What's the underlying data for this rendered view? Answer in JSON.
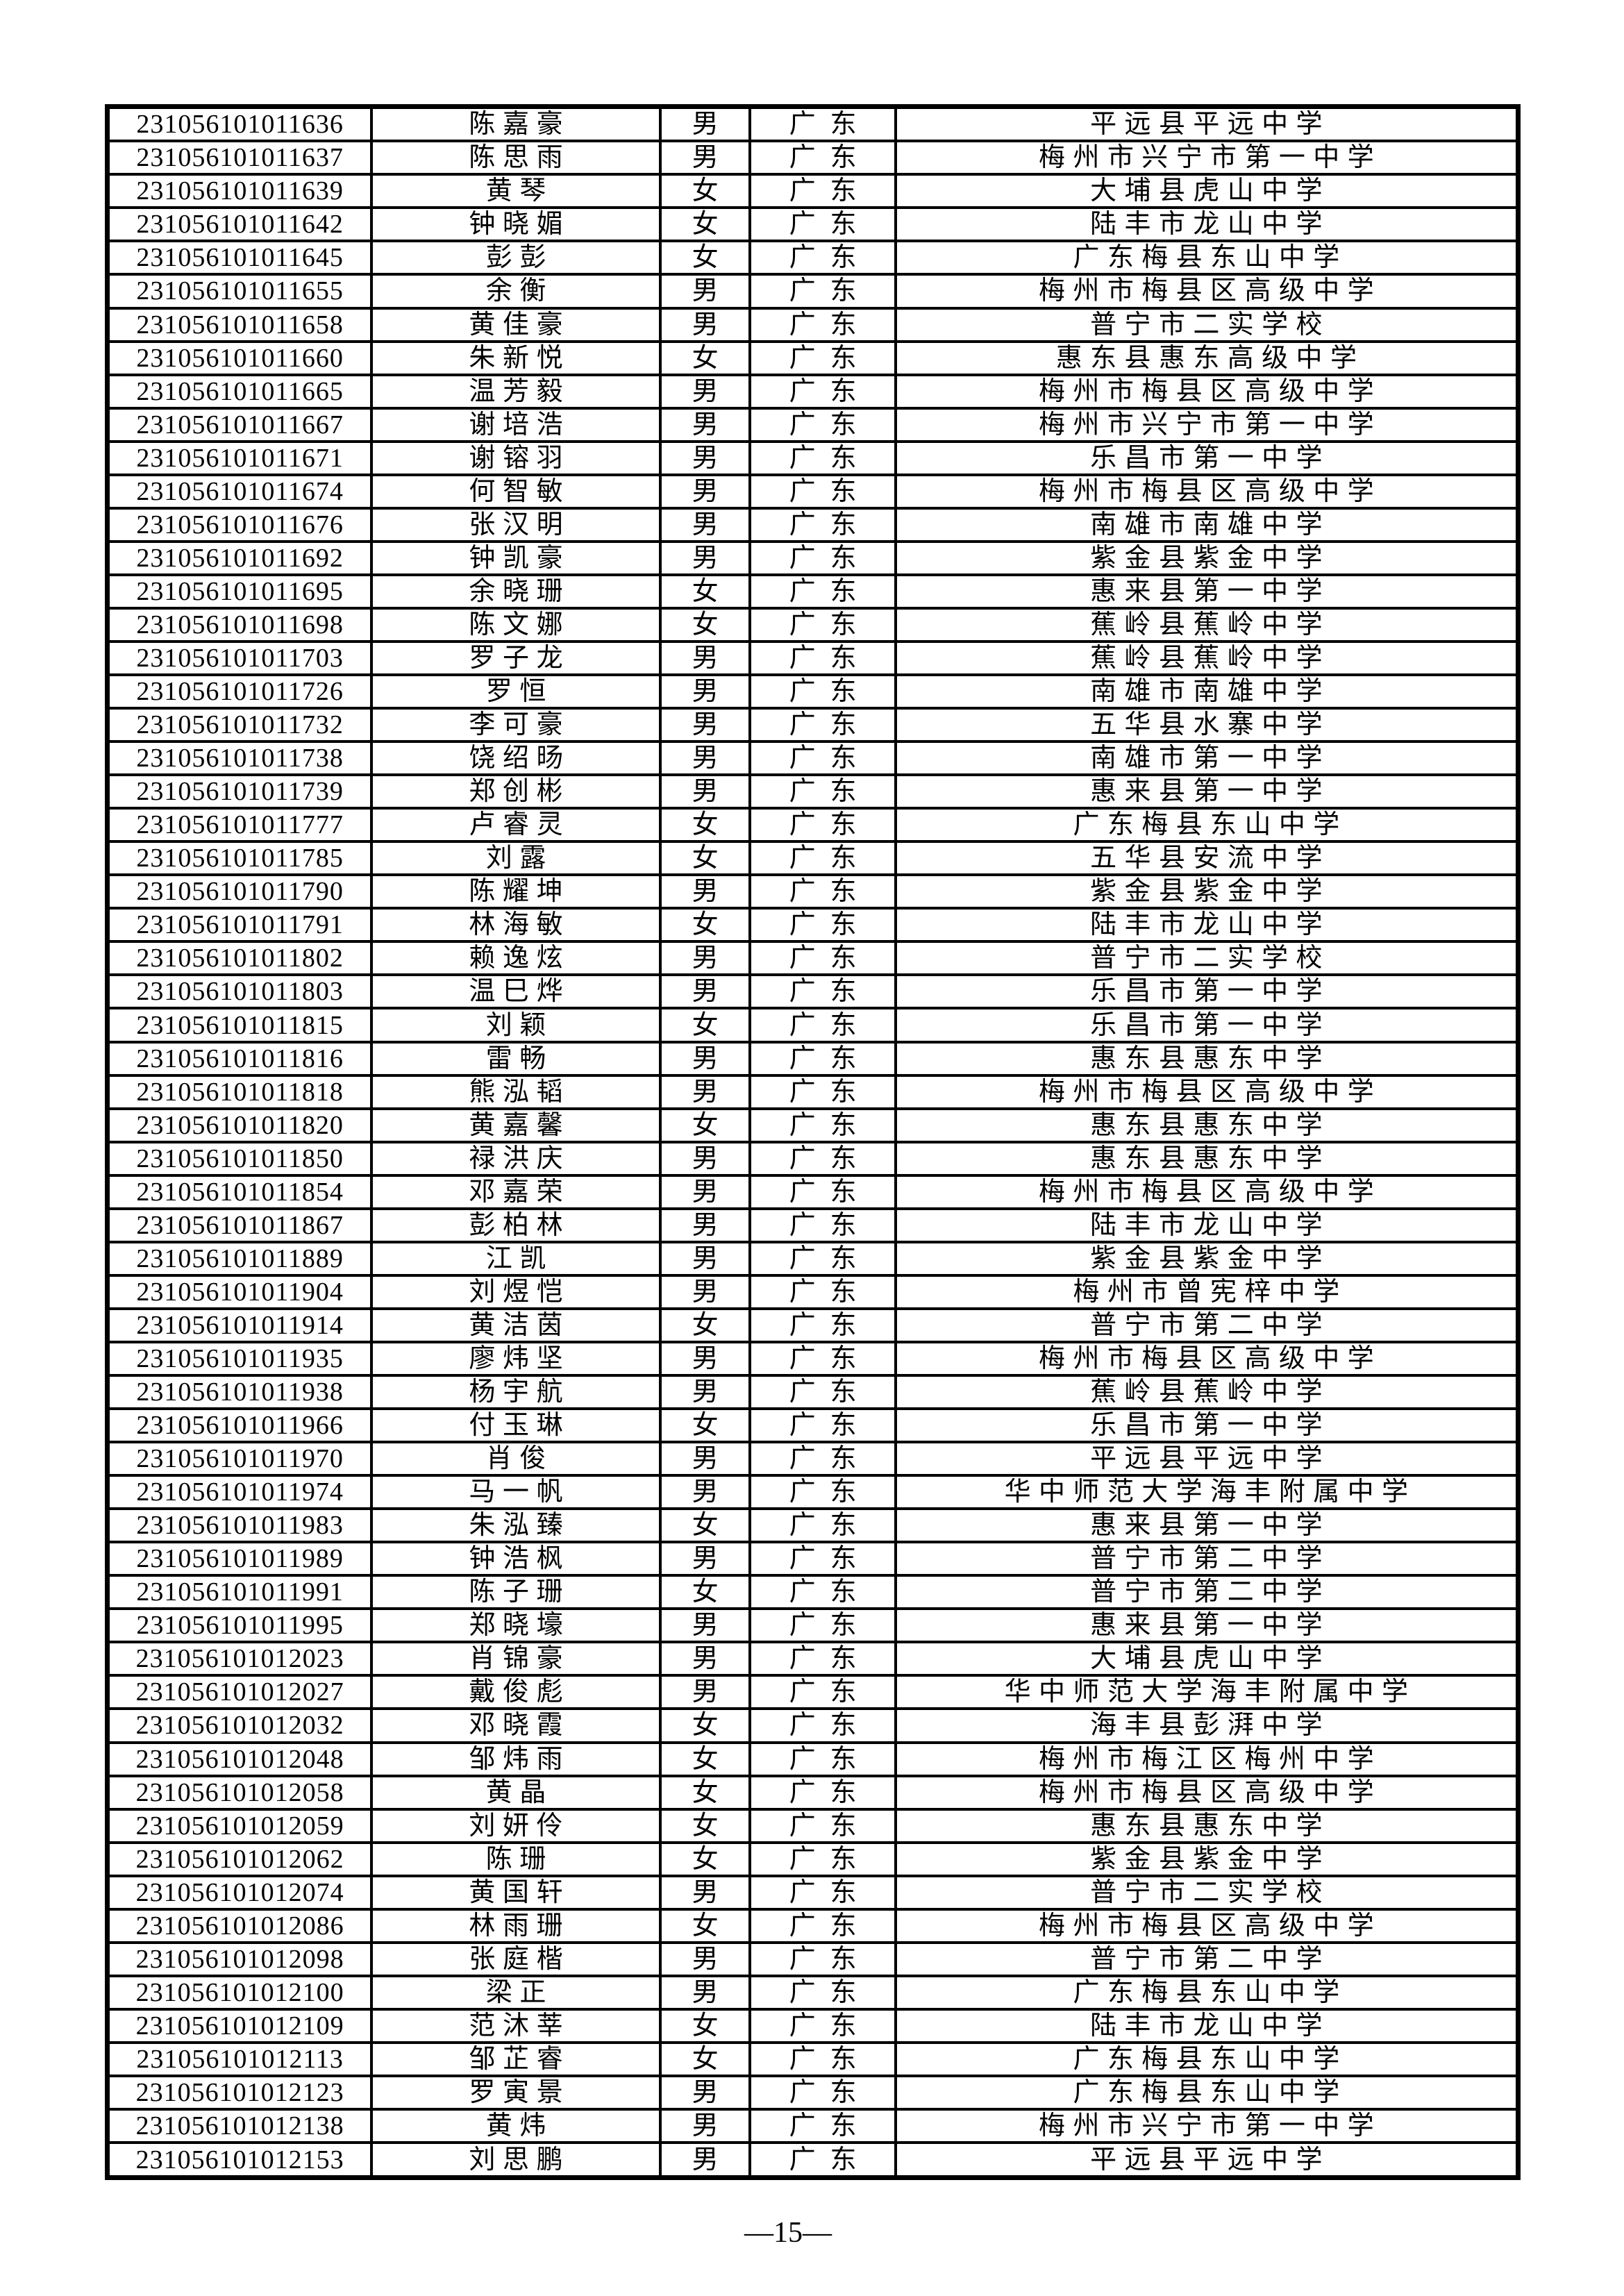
{
  "page": {
    "number_label": "—15—"
  },
  "table": {
    "column_keys": [
      "id",
      "name",
      "gender",
      "province",
      "school"
    ],
    "rows": [
      {
        "id": "231056101011636",
        "name": "陈嘉豪",
        "gender": "男",
        "province": "广东",
        "school": "平远县平远中学"
      },
      {
        "id": "231056101011637",
        "name": "陈思雨",
        "gender": "男",
        "province": "广东",
        "school": "梅州市兴宁市第一中学"
      },
      {
        "id": "231056101011639",
        "name": "黄琴",
        "gender": "女",
        "province": "广东",
        "school": "大埔县虎山中学"
      },
      {
        "id": "231056101011642",
        "name": "钟晓媚",
        "gender": "女",
        "province": "广东",
        "school": "陆丰市龙山中学"
      },
      {
        "id": "231056101011645",
        "name": "彭彭",
        "gender": "女",
        "province": "广东",
        "school": "广东梅县东山中学"
      },
      {
        "id": "231056101011655",
        "name": "余衡",
        "gender": "男",
        "province": "广东",
        "school": "梅州市梅县区高级中学"
      },
      {
        "id": "231056101011658",
        "name": "黄佳豪",
        "gender": "男",
        "province": "广东",
        "school": "普宁市二实学校"
      },
      {
        "id": "231056101011660",
        "name": "朱新悦",
        "gender": "女",
        "province": "广东",
        "school": "惠东县惠东高级中学"
      },
      {
        "id": "231056101011665",
        "name": "温芳毅",
        "gender": "男",
        "province": "广东",
        "school": "梅州市梅县区高级中学"
      },
      {
        "id": "231056101011667",
        "name": "谢培浩",
        "gender": "男",
        "province": "广东",
        "school": "梅州市兴宁市第一中学"
      },
      {
        "id": "231056101011671",
        "name": "谢镕羽",
        "gender": "男",
        "province": "广东",
        "school": "乐昌市第一中学"
      },
      {
        "id": "231056101011674",
        "name": "何智敏",
        "gender": "男",
        "province": "广东",
        "school": "梅州市梅县区高级中学"
      },
      {
        "id": "231056101011676",
        "name": "张汉明",
        "gender": "男",
        "province": "广东",
        "school": "南雄市南雄中学"
      },
      {
        "id": "231056101011692",
        "name": "钟凯豪",
        "gender": "男",
        "province": "广东",
        "school": "紫金县紫金中学"
      },
      {
        "id": "231056101011695",
        "name": "余晓珊",
        "gender": "女",
        "province": "广东",
        "school": "惠来县第一中学"
      },
      {
        "id": "231056101011698",
        "name": "陈文娜",
        "gender": "女",
        "province": "广东",
        "school": "蕉岭县蕉岭中学"
      },
      {
        "id": "231056101011703",
        "name": "罗子龙",
        "gender": "男",
        "province": "广东",
        "school": "蕉岭县蕉岭中学"
      },
      {
        "id": "231056101011726",
        "name": "罗恒",
        "gender": "男",
        "province": "广东",
        "school": "南雄市南雄中学"
      },
      {
        "id": "231056101011732",
        "name": "李可豪",
        "gender": "男",
        "province": "广东",
        "school": "五华县水寨中学"
      },
      {
        "id": "231056101011738",
        "name": "饶绍旸",
        "gender": "男",
        "province": "广东",
        "school": "南雄市第一中学"
      },
      {
        "id": "231056101011739",
        "name": "郑创彬",
        "gender": "男",
        "province": "广东",
        "school": "惠来县第一中学"
      },
      {
        "id": "231056101011777",
        "name": "卢睿灵",
        "gender": "女",
        "province": "广东",
        "school": "广东梅县东山中学"
      },
      {
        "id": "231056101011785",
        "name": "刘露",
        "gender": "女",
        "province": "广东",
        "school": "五华县安流中学"
      },
      {
        "id": "231056101011790",
        "name": "陈耀坤",
        "gender": "男",
        "province": "广东",
        "school": "紫金县紫金中学"
      },
      {
        "id": "231056101011791",
        "name": "林海敏",
        "gender": "女",
        "province": "广东",
        "school": "陆丰市龙山中学"
      },
      {
        "id": "231056101011802",
        "name": "赖逸炫",
        "gender": "男",
        "province": "广东",
        "school": "普宁市二实学校"
      },
      {
        "id": "231056101011803",
        "name": "温巳烨",
        "gender": "男",
        "province": "广东",
        "school": "乐昌市第一中学"
      },
      {
        "id": "231056101011815",
        "name": "刘颖",
        "gender": "女",
        "province": "广东",
        "school": "乐昌市第一中学"
      },
      {
        "id": "231056101011816",
        "name": "雷畅",
        "gender": "男",
        "province": "广东",
        "school": "惠东县惠东中学"
      },
      {
        "id": "231056101011818",
        "name": "熊泓韬",
        "gender": "男",
        "province": "广东",
        "school": "梅州市梅县区高级中学"
      },
      {
        "id": "231056101011820",
        "name": "黄嘉馨",
        "gender": "女",
        "province": "广东",
        "school": "惠东县惠东中学"
      },
      {
        "id": "231056101011850",
        "name": "禄洪庆",
        "gender": "男",
        "province": "广东",
        "school": "惠东县惠东中学"
      },
      {
        "id": "231056101011854",
        "name": "邓嘉荣",
        "gender": "男",
        "province": "广东",
        "school": "梅州市梅县区高级中学"
      },
      {
        "id": "231056101011867",
        "name": "彭柏林",
        "gender": "男",
        "province": "广东",
        "school": "陆丰市龙山中学"
      },
      {
        "id": "231056101011889",
        "name": "江凯",
        "gender": "男",
        "province": "广东",
        "school": "紫金县紫金中学"
      },
      {
        "id": "231056101011904",
        "name": "刘煜恺",
        "gender": "男",
        "province": "广东",
        "school": "梅州市曾宪梓中学"
      },
      {
        "id": "231056101011914",
        "name": "黄洁茵",
        "gender": "女",
        "province": "广东",
        "school": "普宁市第二中学"
      },
      {
        "id": "231056101011935",
        "name": "廖炜坚",
        "gender": "男",
        "province": "广东",
        "school": "梅州市梅县区高级中学"
      },
      {
        "id": "231056101011938",
        "name": "杨宇航",
        "gender": "男",
        "province": "广东",
        "school": "蕉岭县蕉岭中学"
      },
      {
        "id": "231056101011966",
        "name": "付玉琳",
        "gender": "女",
        "province": "广东",
        "school": "乐昌市第一中学"
      },
      {
        "id": "231056101011970",
        "name": "肖俊",
        "gender": "男",
        "province": "广东",
        "school": "平远县平远中学"
      },
      {
        "id": "231056101011974",
        "name": "马一帆",
        "gender": "男",
        "province": "广东",
        "school": "华中师范大学海丰附属中学"
      },
      {
        "id": "231056101011983",
        "name": "朱泓臻",
        "gender": "女",
        "province": "广东",
        "school": "惠来县第一中学"
      },
      {
        "id": "231056101011989",
        "name": "钟浩枫",
        "gender": "男",
        "province": "广东",
        "school": "普宁市第二中学"
      },
      {
        "id": "231056101011991",
        "name": "陈子珊",
        "gender": "女",
        "province": "广东",
        "school": "普宁市第二中学"
      },
      {
        "id": "231056101011995",
        "name": "郑晓壕",
        "gender": "男",
        "province": "广东",
        "school": "惠来县第一中学"
      },
      {
        "id": "231056101012023",
        "name": "肖锦豪",
        "gender": "男",
        "province": "广东",
        "school": "大埔县虎山中学"
      },
      {
        "id": "231056101012027",
        "name": "戴俊彪",
        "gender": "男",
        "province": "广东",
        "school": "华中师范大学海丰附属中学"
      },
      {
        "id": "231056101012032",
        "name": "邓晓霞",
        "gender": "女",
        "province": "广东",
        "school": "海丰县彭湃中学"
      },
      {
        "id": "231056101012048",
        "name": "邹炜雨",
        "gender": "女",
        "province": "广东",
        "school": "梅州市梅江区梅州中学"
      },
      {
        "id": "231056101012058",
        "name": "黄晶",
        "gender": "女",
        "province": "广东",
        "school": "梅州市梅县区高级中学"
      },
      {
        "id": "231056101012059",
        "name": "刘妍伶",
        "gender": "女",
        "province": "广东",
        "school": "惠东县惠东中学"
      },
      {
        "id": "231056101012062",
        "name": "陈珊",
        "gender": "女",
        "province": "广东",
        "school": "紫金县紫金中学"
      },
      {
        "id": "231056101012074",
        "name": "黄国轩",
        "gender": "男",
        "province": "广东",
        "school": "普宁市二实学校"
      },
      {
        "id": "231056101012086",
        "name": "林雨珊",
        "gender": "女",
        "province": "广东",
        "school": "梅州市梅县区高级中学"
      },
      {
        "id": "231056101012098",
        "name": "张庭楷",
        "gender": "男",
        "province": "广东",
        "school": "普宁市第二中学"
      },
      {
        "id": "231056101012100",
        "name": "梁正",
        "gender": "男",
        "province": "广东",
        "school": "广东梅县东山中学"
      },
      {
        "id": "231056101012109",
        "name": "范沐莘",
        "gender": "女",
        "province": "广东",
        "school": "陆丰市龙山中学"
      },
      {
        "id": "231056101012113",
        "name": "邹芷睿",
        "gender": "女",
        "province": "广东",
        "school": "广东梅县东山中学"
      },
      {
        "id": "231056101012123",
        "name": "罗寅景",
        "gender": "男",
        "province": "广东",
        "school": "广东梅县东山中学"
      },
      {
        "id": "231056101012138",
        "name": "黄炜",
        "gender": "男",
        "province": "广东",
        "school": "梅州市兴宁市第一中学"
      },
      {
        "id": "231056101012153",
        "name": "刘思鹏",
        "gender": "男",
        "province": "广东",
        "school": "平远县平远中学"
      }
    ]
  }
}
